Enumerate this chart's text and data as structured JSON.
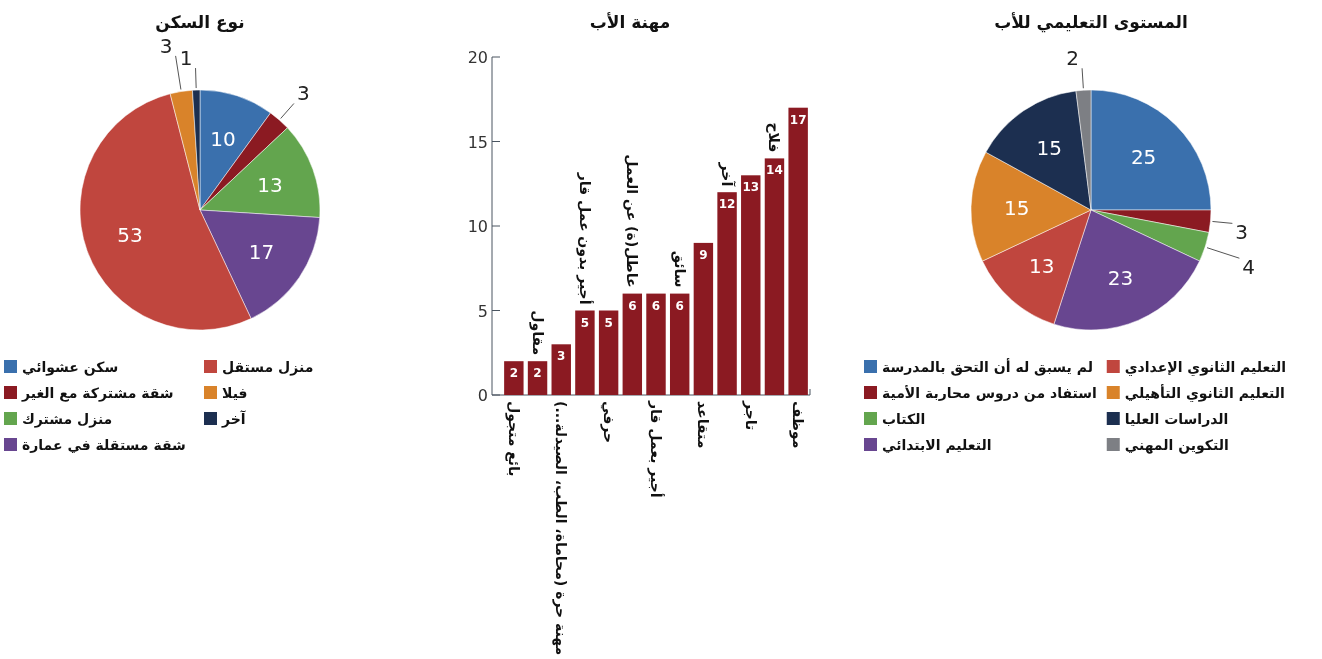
{
  "chart_data": [
    {
      "type": "pie",
      "title": "نوع السكن",
      "categories": [
        "سكن عشوائي",
        "شقة مشتركة مع الغير",
        "منزل مشترك",
        "شقة مستقلة في عمارة",
        "منزل مستقل",
        "فيلا",
        "آخر"
      ],
      "values": [
        10,
        3,
        13,
        17,
        53,
        3,
        1
      ],
      "colors": [
        "#3a70ad",
        "#8b1a22",
        "#63a54e",
        "#684690",
        "#c0463e",
        "#d9832a",
        "#1c2f50"
      ],
      "data_labels": true,
      "legend": "bottom"
    },
    {
      "type": "bar",
      "title": "مهنة الأب",
      "categories": [
        "بائع متجول",
        "مقاول",
        "مهنة حرة (محاماة، الطب، الصيدلة...)",
        "أجير بدون عمل قار",
        "حرفي",
        "عاطل(ة) عن العمل",
        "أجير بعمل قار",
        "سائق",
        "متقاعد",
        "آخر",
        "تاجر",
        "فلاح",
        "موظف"
      ],
      "values": [
        2,
        2,
        3,
        5,
        5,
        6,
        6,
        6,
        9,
        12,
        13,
        14,
        17
      ],
      "color": "#8b1a22",
      "ylim": [
        0,
        20
      ],
      "yticks": [
        0,
        5,
        10,
        15,
        20
      ],
      "data_labels": true
    },
    {
      "type": "pie",
      "title": "المستوى التعليمي للأب",
      "categories": [
        "لم يسبق له أن التحق بالمدرسة",
        "استفاد من دروس محاربة الأمية",
        "الكتاب",
        "التعليم الابتدائي",
        "التعليم الثانوي الإعدادي",
        "التعليم الثانوي التأهيلي",
        "الدراسات العليا",
        "التكوين المهني"
      ],
      "values": [
        25,
        3,
        4,
        23,
        13,
        15,
        15,
        2
      ],
      "colors": [
        "#3a70ad",
        "#8b1a22",
        "#63a54e",
        "#684690",
        "#c0463e",
        "#d9832a",
        "#1c2f50",
        "#7d7f84"
      ],
      "data_labels": true,
      "legend": "bottom"
    }
  ]
}
